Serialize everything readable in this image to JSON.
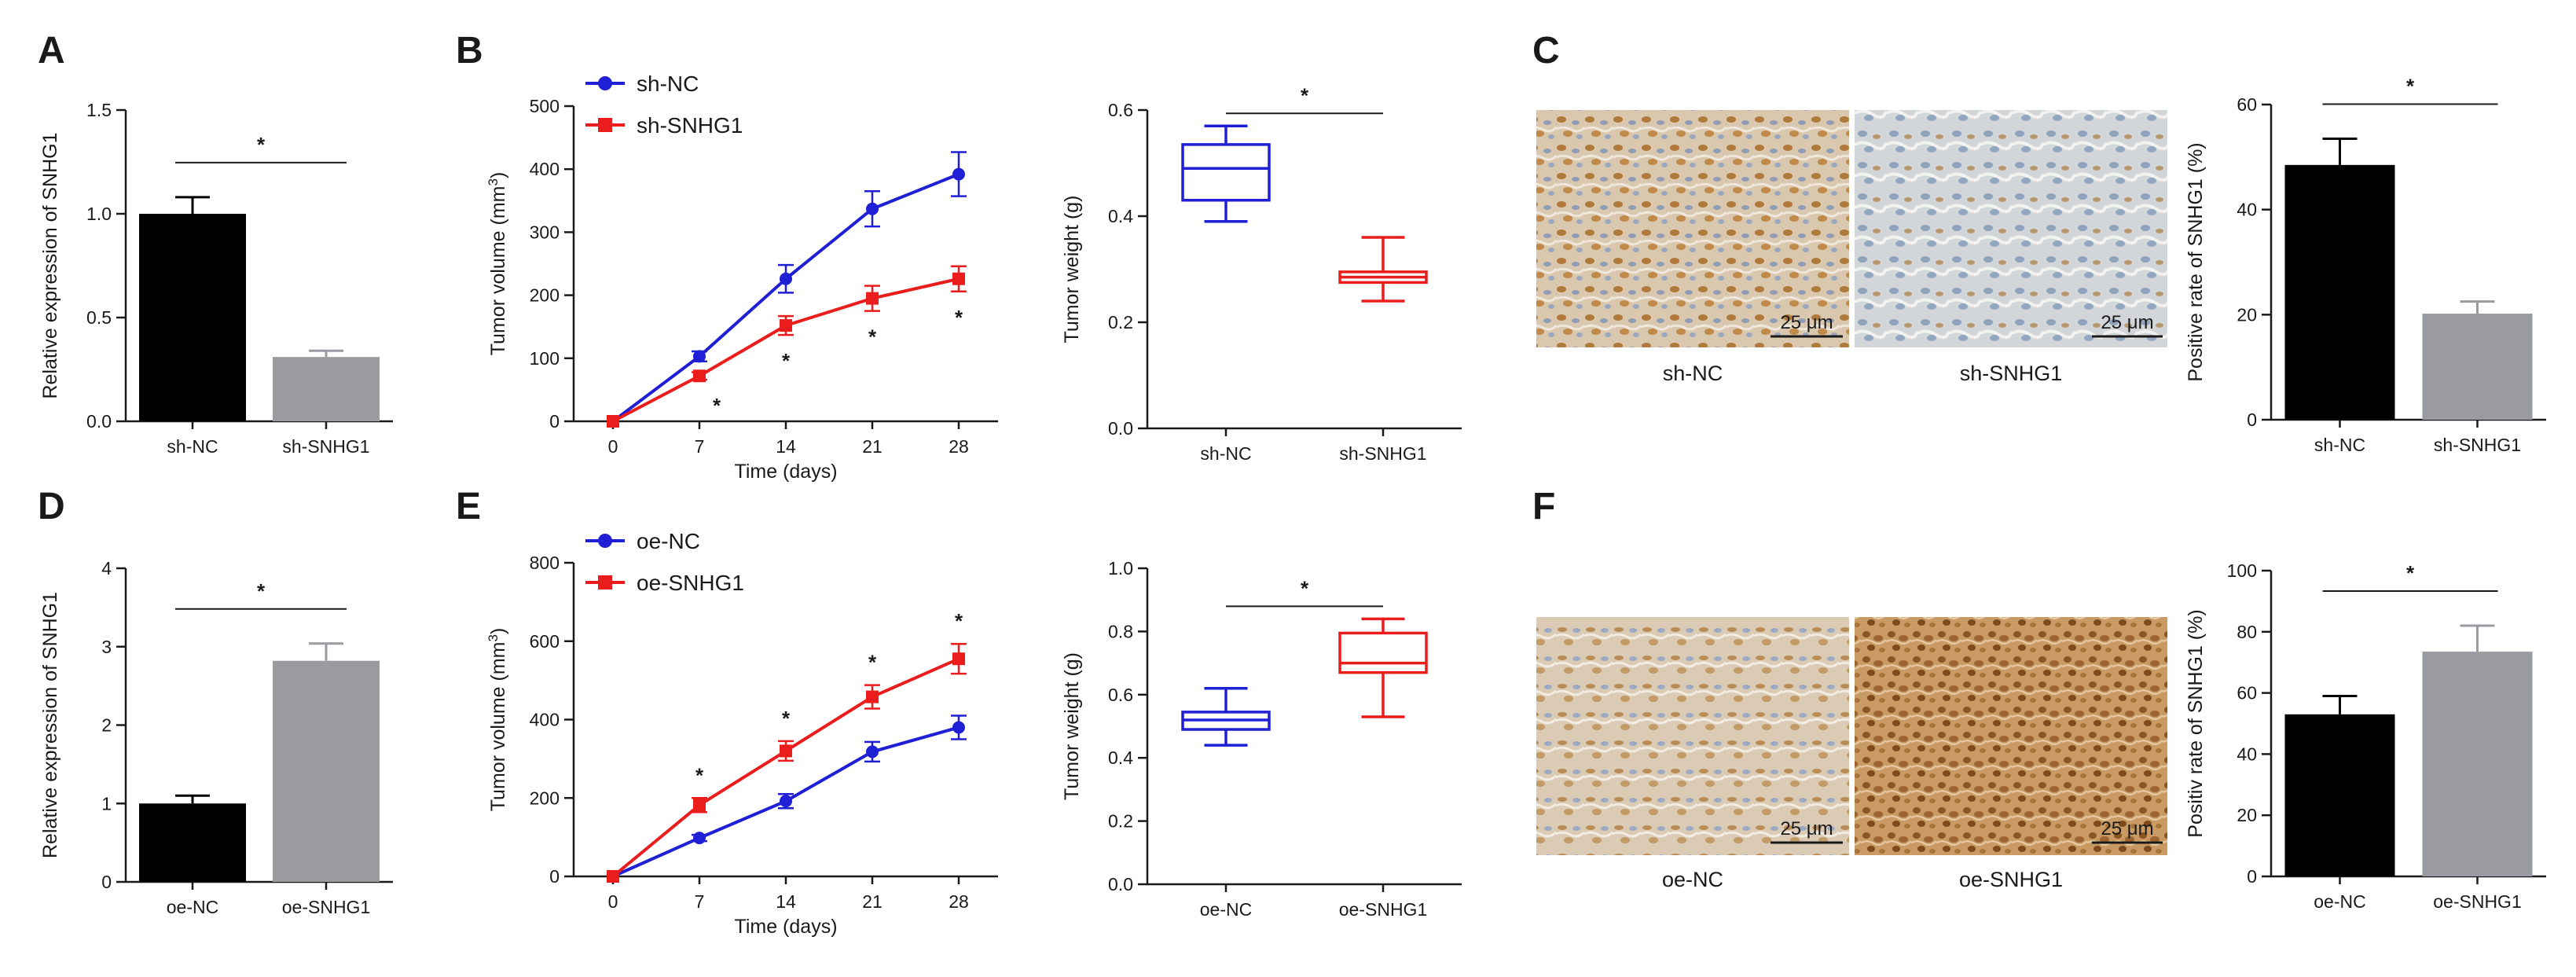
{
  "colors": {
    "black": "#000000",
    "grey": "#9a9ba1",
    "blue": "#1f1fd6",
    "red": "#ea1c1c",
    "axis": "#1a1a1a"
  },
  "panel_letters": [
    "A",
    "B",
    "C",
    "D",
    "E",
    "F"
  ],
  "scale_bar_text": "25 μm",
  "micrographs": {
    "C": [
      "sh-NC",
      "sh-SNHG1"
    ],
    "F": [
      "oe-NC",
      "oe-SNHG1"
    ]
  },
  "chart_data": [
    {
      "panel": "A",
      "type": "bar",
      "id": "A",
      "categories": [
        "sh-NC",
        "sh-SNHG1"
      ],
      "values": [
        1.0,
        0.31
      ],
      "errors": [
        0.08,
        0.03
      ],
      "bar_colors": [
        "#000000",
        "#9a9ba1"
      ],
      "ylabel": "Relative expression of SNHG1",
      "ylim": [
        0,
        1.5
      ],
      "yticks": [
        "0.0",
        "0.5",
        "1.0",
        "1.5"
      ],
      "significance": "*"
    },
    {
      "panel": "B",
      "type": "line",
      "id": "B1",
      "x": [
        0,
        7,
        14,
        21,
        28
      ],
      "xticks": [
        "0",
        "7",
        "14",
        "21",
        "28"
      ],
      "series": [
        {
          "name": "sh-NC",
          "values": [
            0,
            103,
            226,
            337,
            392
          ],
          "errors": [
            0,
            8,
            22,
            28,
            35
          ],
          "color": "#1f1fd6",
          "marker": "circle"
        },
        {
          "name": "sh-SNHG1",
          "values": [
            0,
            72,
            152,
            195,
            226
          ],
          "errors": [
            0,
            6,
            15,
            20,
            20
          ],
          "color": "#ea1c1c",
          "marker": "square"
        }
      ],
      "xlabel": "Time (days)",
      "ylabel": "Tumor volume (mm3)",
      "ylim": [
        0,
        500
      ],
      "yticks": [
        "0",
        "100",
        "200",
        "300",
        "400",
        "500"
      ],
      "significance": [
        "",
        "*",
        "*",
        "*",
        "*"
      ]
    },
    {
      "panel": "B",
      "type": "box",
      "id": "B2",
      "categories": [
        "sh-NC",
        "sh-SNHG1"
      ],
      "boxes": [
        {
          "min": 0.39,
          "q1": 0.43,
          "median": 0.49,
          "q3": 0.535,
          "max": 0.57,
          "color": "#1f1fd6"
        },
        {
          "min": 0.24,
          "q1": 0.275,
          "median": 0.285,
          "q3": 0.295,
          "max": 0.36,
          "color": "#ea1c1c"
        }
      ],
      "ylabel": "Tumor weight (g)",
      "ylim": [
        0,
        0.6
      ],
      "yticks": [
        "0.0",
        "0.2",
        "0.4",
        "0.6"
      ],
      "significance": "*"
    },
    {
      "panel": "C",
      "type": "bar",
      "id": "C",
      "categories": [
        "sh-NC",
        "sh-SNHG1"
      ],
      "values": [
        48.5,
        20.2
      ],
      "errors": [
        5.0,
        2.3
      ],
      "bar_colors": [
        "#000000",
        "#9a9ba1"
      ],
      "ylabel": "Positive rate of SNHG1 (%)",
      "ylim": [
        0,
        60
      ],
      "yticks": [
        "0",
        "20",
        "40",
        "60"
      ],
      "significance": "*"
    },
    {
      "panel": "D",
      "type": "bar",
      "id": "D",
      "categories": [
        "oe-NC",
        "oe-SNHG1"
      ],
      "values": [
        1.0,
        2.82
      ],
      "errors": [
        0.1,
        0.22
      ],
      "bar_colors": [
        "#000000",
        "#9a9ba1"
      ],
      "ylabel": "Relative expression of SNHG1",
      "ylim": [
        0,
        4
      ],
      "yticks": [
        "0",
        "1",
        "2",
        "3",
        "4"
      ],
      "significance": "*"
    },
    {
      "panel": "E",
      "type": "line",
      "id": "E1",
      "x": [
        0,
        7,
        14,
        21,
        28
      ],
      "xticks": [
        "0",
        "7",
        "14",
        "21",
        "28"
      ],
      "series": [
        {
          "name": "oe-NC",
          "values": [
            0,
            98,
            192,
            318,
            380
          ],
          "errors": [
            0,
            8,
            18,
            25,
            30
          ],
          "color": "#1f1fd6",
          "marker": "circle"
        },
        {
          "name": "oe-SNHG1",
          "values": [
            0,
            182,
            320,
            458,
            555
          ],
          "errors": [
            0,
            18,
            25,
            30,
            38
          ],
          "color": "#ea1c1c",
          "marker": "square"
        }
      ],
      "xlabel": "Time (days)",
      "ylabel": "Tumor volume (mm3)",
      "ylim": [
        0,
        800
      ],
      "yticks": [
        "0",
        "200",
        "400",
        "600",
        "800"
      ],
      "significance": [
        "",
        "*",
        "*",
        "*",
        "*"
      ]
    },
    {
      "panel": "E",
      "type": "box",
      "id": "E2",
      "categories": [
        "oe-NC",
        "oe-SNHG1"
      ],
      "boxes": [
        {
          "min": 0.44,
          "q1": 0.49,
          "median": 0.52,
          "q3": 0.545,
          "max": 0.62,
          "color": "#1f1fd6"
        },
        {
          "min": 0.53,
          "q1": 0.67,
          "median": 0.7,
          "q3": 0.795,
          "max": 0.84,
          "color": "#ea1c1c"
        }
      ],
      "ylabel": "Tumor weight (g)",
      "ylim": [
        0,
        1.0
      ],
      "yticks": [
        "0.0",
        "0.2",
        "0.4",
        "0.6",
        "0.8",
        "1.0"
      ],
      "significance": "*"
    },
    {
      "panel": "F",
      "type": "bar",
      "id": "F",
      "categories": [
        "oe-NC",
        "oe-SNHG1"
      ],
      "values": [
        53.0,
        73.5
      ],
      "errors": [
        6.0,
        8.5
      ],
      "bar_colors": [
        "#000000",
        "#9a9ba1"
      ],
      "ylabel": "Positiv rate of SNHG1 (%)",
      "ylim": [
        0,
        100
      ],
      "yticks": [
        "0",
        "20",
        "40",
        "60",
        "80",
        "100"
      ],
      "significance": "*"
    }
  ]
}
